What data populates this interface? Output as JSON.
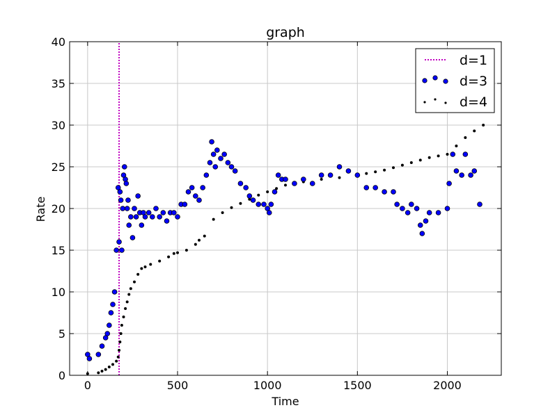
{
  "chart_data": {
    "type": "scatter",
    "title": "graph",
    "xlabel": "Time",
    "ylabel": "Rate",
    "xlim": [
      -100,
      2300
    ],
    "ylim": [
      0,
      40
    ],
    "xticks": [
      0,
      500,
      1000,
      1500,
      2000
    ],
    "yticks": [
      0,
      5,
      10,
      15,
      20,
      25,
      30,
      35,
      40
    ],
    "grid": true,
    "legend_position": "top-right",
    "colors": {
      "d1": "#c000c0",
      "d3_fill": "#0000ff",
      "d3_edge": "#000000",
      "d4": "#000000"
    },
    "series": [
      {
        "name": "d=1",
        "style": "dotted-vertical-line",
        "x": [
          175,
          175
        ],
        "y": [
          0,
          40
        ]
      },
      {
        "name": "d=3",
        "style": "blue-circles",
        "x": [
          0,
          10,
          60,
          80,
          100,
          110,
          120,
          130,
          140,
          150,
          160,
          170,
          175,
          180,
          185,
          190,
          195,
          200,
          205,
          210,
          215,
          220,
          225,
          230,
          240,
          250,
          260,
          270,
          280,
          290,
          300,
          310,
          320,
          340,
          360,
          380,
          400,
          420,
          440,
          460,
          480,
          500,
          520,
          540,
          560,
          580,
          600,
          620,
          640,
          660,
          680,
          690,
          700,
          710,
          720,
          740,
          760,
          780,
          800,
          820,
          850,
          880,
          900,
          920,
          950,
          980,
          1000,
          1010,
          1020,
          1040,
          1060,
          1080,
          1100,
          1150,
          1200,
          1250,
          1300,
          1350,
          1400,
          1450,
          1500,
          1550,
          1600,
          1650,
          1700,
          1720,
          1750,
          1780,
          1800,
          1830,
          1850,
          1860,
          1880,
          1900,
          1950,
          2000,
          2010,
          2030,
          2050,
          2080,
          2100,
          2130,
          2150,
          2180
        ],
        "y": [
          2.5,
          2.0,
          2.5,
          3.5,
          4.5,
          5.0,
          6.0,
          7.5,
          8.5,
          10.0,
          15.0,
          22.5,
          16.0,
          22.0,
          21.0,
          15.0,
          20.0,
          24.0,
          25.0,
          23.5,
          23.0,
          20.0,
          21.0,
          18.0,
          19.0,
          16.5,
          20.0,
          19.0,
          21.5,
          19.5,
          18.0,
          19.5,
          19.0,
          19.5,
          19.0,
          20.0,
          19.0,
          19.5,
          18.5,
          19.5,
          19.5,
          19.0,
          20.5,
          20.5,
          22.0,
          22.5,
          21.5,
          21.0,
          22.5,
          24.0,
          25.5,
          28.0,
          26.5,
          25.0,
          27.0,
          26.0,
          26.5,
          25.5,
          25.0,
          24.5,
          23.0,
          22.5,
          21.5,
          21.0,
          20.5,
          20.5,
          20.0,
          19.5,
          20.5,
          22.0,
          24.0,
          23.5,
          23.5,
          23.0,
          23.5,
          23.0,
          24.0,
          24.0,
          25.0,
          24.5,
          24.0,
          22.5,
          22.5,
          22.0,
          22.0,
          20.5,
          20.0,
          19.5,
          20.5,
          20.0,
          18.0,
          17.0,
          18.5,
          19.5,
          19.5,
          20.0,
          23.0,
          26.5,
          24.5,
          24.0,
          26.5,
          24.0,
          24.5,
          20.5
        ]
      },
      {
        "name": "d=4",
        "style": "small-black-dots",
        "x": [
          0,
          60,
          80,
          100,
          120,
          140,
          160,
          170,
          175,
          180,
          185,
          190,
          200,
          210,
          220,
          230,
          240,
          260,
          280,
          300,
          320,
          350,
          400,
          450,
          480,
          500,
          550,
          600,
          620,
          650,
          700,
          750,
          800,
          850,
          900,
          950,
          1000,
          1050,
          1100,
          1150,
          1200,
          1300,
          1400,
          1500,
          1550,
          1600,
          1650,
          1700,
          1750,
          1800,
          1850,
          1900,
          1950,
          2000,
          2050,
          2100,
          2150,
          2200
        ],
        "y": [
          0.2,
          0.3,
          0.5,
          0.7,
          1.0,
          1.3,
          1.7,
          2.2,
          3.0,
          4.0,
          5.0,
          6.0,
          7.0,
          8.0,
          8.8,
          9.7,
          10.4,
          11.2,
          12.1,
          12.8,
          13.0,
          13.3,
          13.7,
          14.2,
          14.6,
          14.7,
          15.0,
          15.7,
          16.2,
          16.7,
          18.7,
          19.5,
          20.1,
          20.6,
          21.1,
          21.6,
          22.0,
          22.4,
          22.8,
          23.0,
          23.2,
          23.5,
          23.7,
          23.9,
          24.2,
          24.4,
          24.6,
          24.9,
          25.2,
          25.5,
          25.8,
          26.1,
          26.3,
          26.5,
          27.5,
          28.5,
          29.3,
          30.0
        ]
      }
    ]
  }
}
